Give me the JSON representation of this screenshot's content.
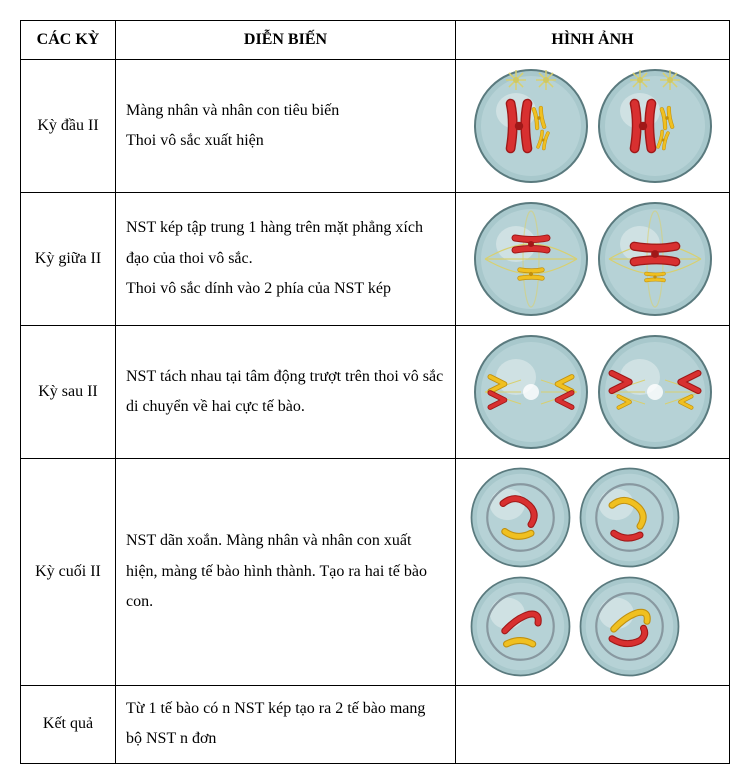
{
  "headers": {
    "phase": "CÁC KỲ",
    "desc": "DIỄN BIẾN",
    "img": "HÌNH ẢNH"
  },
  "rows": [
    {
      "phase": "Kỳ đầu II",
      "desc": "Màng nhân và nhân con tiêu biến\nThoi vô sắc xuất hiện",
      "img_type": "prophase2"
    },
    {
      "phase": "Kỳ giữa II",
      "desc": "NST kép  tập trung 1 hàng trên mặt phẳng xích đạo của thoi vô sắc.\nThoi vô sắc dính vào 2 phía của NST kép",
      "img_type": "metaphase2"
    },
    {
      "phase": "Kỳ sau II",
      "desc": "NST tách nhau tại tâm động trượt trên thoi vô sắc di chuyển về hai cực tế bào.",
      "img_type": "anaphase2"
    },
    {
      "phase": "Kỳ cuối II",
      "desc": "NST dãn xoắn. Màng nhân và nhân con xuất hiện, màng tế bào hình thành. Tạo ra hai tế bào con.",
      "img_type": "telophase2"
    },
    {
      "phase": "Kết quả",
      "desc": "Từ 1 tế bào có n NST kép tạo ra 2 tế bào mang bộ NST n đơn",
      "img_type": "none"
    }
  ],
  "styling": {
    "cell_fill": "#a8c8cc",
    "cell_fill_light": "#c0d8dc",
    "cell_stroke": "#5a7a7e",
    "cell_highlight": "#e8f0f0",
    "chrom_red": "#d83030",
    "chrom_red_dark": "#a01818",
    "chrom_yellow": "#f0c020",
    "chrom_yellow_dark": "#c09010",
    "spindle_color": "#d8d070",
    "centrosome_color": "#d0c860",
    "nuclear_env": "#8898a0"
  }
}
